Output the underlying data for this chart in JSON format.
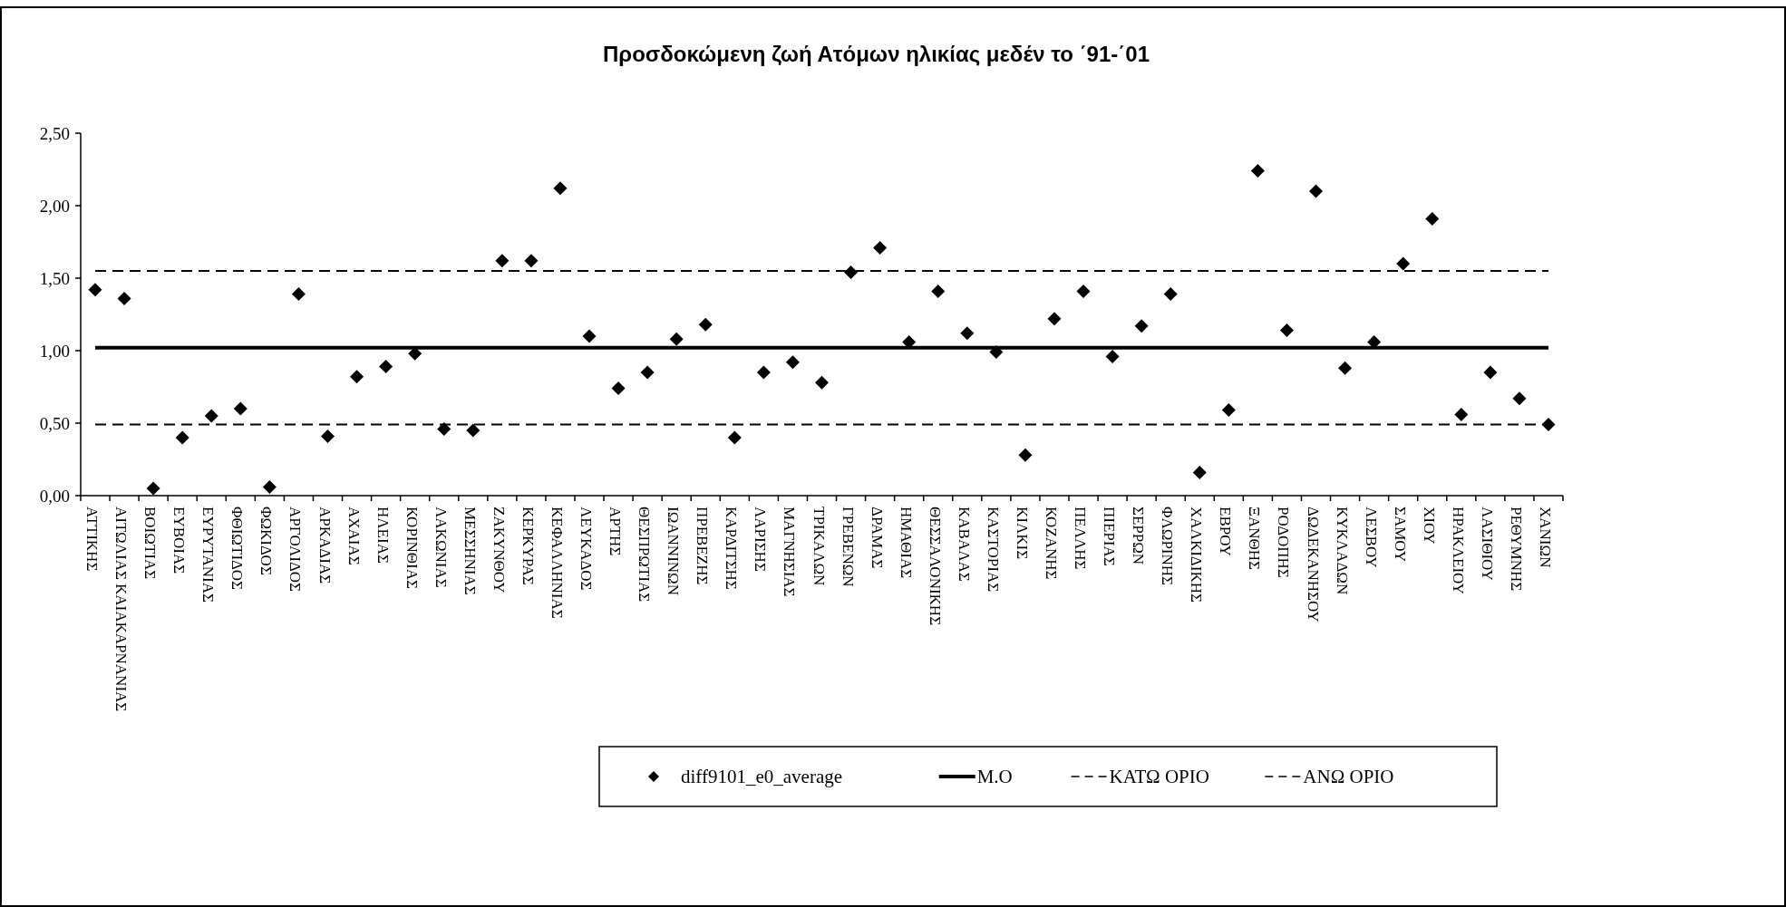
{
  "chart_data": {
    "type": "scatter",
    "title": "Προσδοκώμενη ζωή Ατόμων ηλικίας μεδέν το ΄91-΄01",
    "categories": [
      "ΑΤΤΙΚΗΣ",
      "ΑΙΤΩΛΙΑΣ ΚΑΙΑΚΑΡΝΑΝΙΑΣ",
      "ΒΟΙΩΤΙΑΣ",
      "ΕΥΒΟΙΑΣ",
      "ΕΥΡΥΤΑΝΙΑΣ",
      "ΦΘΙΩΤΙΔΟΣ",
      "ΦΩΚΙΔΟΣ",
      "ΑΡΓΟΛΙΔΟΣ",
      "ΑΡΚΑΔΙΑΣ",
      "ΑΧΑΙΑΣ",
      "ΗΛΕΙΑΣ",
      "ΚΟΡΙΝΘΙΑΣ",
      "ΛΑΚΩΝΙΑΣ",
      "ΜΕΣΣΗΝΙΑΣ",
      "ΖΑΚΥΝΘΟΥ",
      "ΚΕΡΚΥΡΑΣ",
      "ΚΕΦΑΛΛΗΝΙΑΣ",
      "ΛΕΥΚΑΔΟΣ",
      "ΑΡΤΗΣ",
      "ΘΕΣΠΡΩΤΙΑΣ",
      "ΙΩΑΝΝΙΝΩΝ",
      "ΠΡΕΒΕΖΗΣ",
      "ΚΑΡΔΙΤΣΗΣ",
      "ΛΑΡΙΣΗΣ",
      "ΜΑΓΝΗΣΙΑΣ",
      "ΤΡΙΚΑΛΩΝ",
      "ΓΡΕΒΕΝΩΝ",
      "ΔΡΑΜΑΣ",
      "ΗΜΑΘΙΑΣ",
      "ΘΕΣΣΑΛΟΝΙΚΗΣ",
      "ΚΑΒΑΛΑΣ",
      "ΚΑΣΤΟΡΙΑΣ",
      "ΚΙΛΚΙΣ",
      "ΚΟΖΑΝΗΣ",
      "ΠΕΛΛΗΣ",
      "ΠΙΕΡΙΑΣ",
      "ΣΕΡΡΩΝ",
      "ΦΛΩΡΙΝΗΣ",
      "ΧΑΛΚΙΔΙΚΗΣ",
      "ΕΒΡΟΥ",
      "ΞΑΝΘΗΣ",
      "ΡΟΔΟΠΗΣ",
      "ΔΩΔΕΚΑΝΗΣΟΥ",
      "ΚΥΚΛΑΔΩΝ",
      "ΛΕΣΒΟΥ",
      "ΣΑΜΟΥ",
      "ΧΙΟΥ",
      "ΗΡΑΚΛΕΙΟΥ",
      "ΛΑΣΙΘΙΟΥ",
      "ΡΕΘΥΜΝΗΣ",
      "ΧΑΝΙΩΝ"
    ],
    "series": [
      {
        "name": "diff9101_e0_average",
        "marker": "diamond",
        "color": "#000000",
        "values": [
          1.42,
          1.36,
          0.05,
          0.4,
          0.55,
          0.6,
          0.06,
          1.39,
          0.41,
          0.82,
          0.89,
          0.98,
          0.46,
          0.45,
          1.62,
          1.62,
          2.12,
          1.1,
          0.74,
          0.85,
          1.08,
          1.18,
          0.4,
          0.85,
          0.92,
          0.78,
          1.54,
          1.71,
          1.06,
          1.41,
          1.12,
          0.99,
          0.28,
          1.22,
          1.41,
          0.96,
          1.17,
          1.39,
          0.16,
          0.59,
          2.24,
          1.14,
          2.1,
          0.88,
          1.06,
          1.6,
          1.91,
          0.56,
          0.85,
          0.67,
          0.49
        ]
      },
      {
        "name": "M.O",
        "type": "line",
        "line_style": "solid",
        "color": "#000000",
        "values": [
          1.02,
          1.02,
          1.02,
          1.02,
          1.02,
          1.02,
          1.02,
          1.02,
          1.02,
          1.02,
          1.02,
          1.02,
          1.02,
          1.02,
          1.02,
          1.02,
          1.02,
          1.02,
          1.02,
          1.02,
          1.02,
          1.02,
          1.02,
          1.02,
          1.02,
          1.02,
          1.02,
          1.02,
          1.02,
          1.02,
          1.02,
          1.02,
          1.02,
          1.02,
          1.02,
          1.02,
          1.02,
          1.02,
          1.02,
          1.02,
          1.02,
          1.02,
          1.02,
          1.02,
          1.02,
          1.02,
          1.02,
          1.02,
          1.02,
          1.02,
          1.02
        ]
      },
      {
        "name": "ΚΑΤΩ ΟΡΙΟ",
        "type": "line",
        "line_style": "dashed",
        "color": "#000000",
        "values": [
          0.49,
          0.49,
          0.49,
          0.49,
          0.49,
          0.49,
          0.49,
          0.49,
          0.49,
          0.49,
          0.49,
          0.49,
          0.49,
          0.49,
          0.49,
          0.49,
          0.49,
          0.49,
          0.49,
          0.49,
          0.49,
          0.49,
          0.49,
          0.49,
          0.49,
          0.49,
          0.49,
          0.49,
          0.49,
          0.49,
          0.49,
          0.49,
          0.49,
          0.49,
          0.49,
          0.49,
          0.49,
          0.49,
          0.49,
          0.49,
          0.49,
          0.49,
          0.49,
          0.49,
          0.49,
          0.49,
          0.49,
          0.49,
          0.49,
          0.49,
          0.49
        ]
      },
      {
        "name": "ΑΝΩ ΟΡΙΟ",
        "type": "line",
        "line_style": "dashed",
        "color": "#000000",
        "values": [
          1.55,
          1.55,
          1.55,
          1.55,
          1.55,
          1.55,
          1.55,
          1.55,
          1.55,
          1.55,
          1.55,
          1.55,
          1.55,
          1.55,
          1.55,
          1.55,
          1.55,
          1.55,
          1.55,
          1.55,
          1.55,
          1.55,
          1.55,
          1.55,
          1.55,
          1.55,
          1.55,
          1.55,
          1.55,
          1.55,
          1.55,
          1.55,
          1.55,
          1.55,
          1.55,
          1.55,
          1.55,
          1.55,
          1.55,
          1.55,
          1.55,
          1.55,
          1.55,
          1.55,
          1.55,
          1.55,
          1.55,
          1.55,
          1.55,
          1.55,
          1.55
        ]
      }
    ],
    "ylim": [
      0,
      2.5
    ],
    "yticks": [
      {
        "value": 0,
        "label": "0,00"
      },
      {
        "value": 0.5,
        "label": "0,50"
      },
      {
        "value": 1,
        "label": "1,00"
      },
      {
        "value": 1.5,
        "label": "1,50"
      },
      {
        "value": 2,
        "label": "2,00"
      },
      {
        "value": 2.5,
        "label": "2,50"
      }
    ],
    "grid": false,
    "legend": "bottom"
  }
}
